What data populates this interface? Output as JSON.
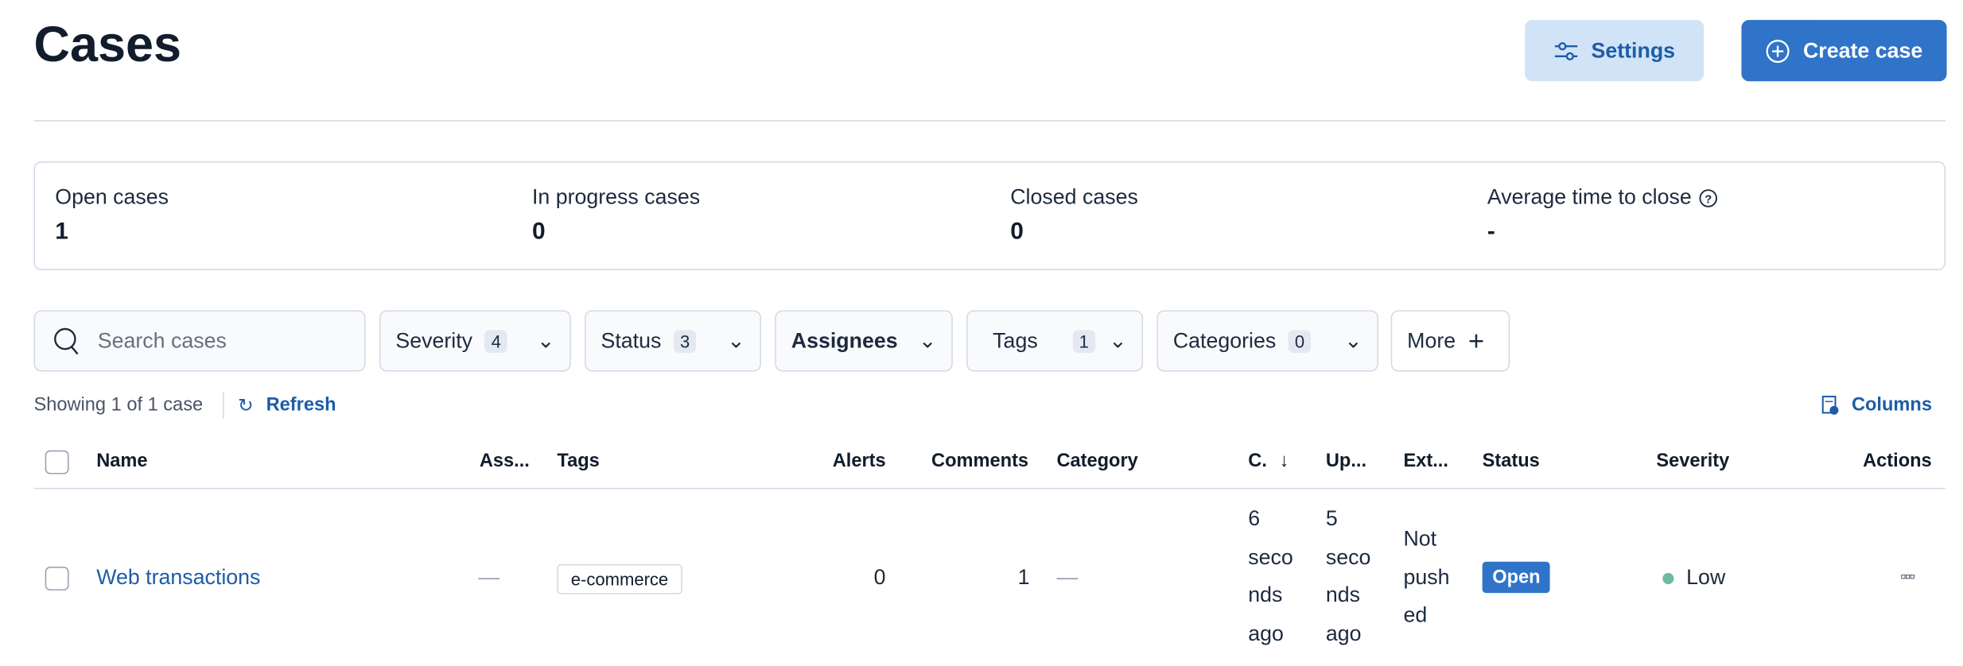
{
  "header": {
    "title": "Cases",
    "settings_label": "Settings",
    "create_label": "Create case"
  },
  "stats": [
    {
      "label": "Open cases",
      "value": "1"
    },
    {
      "label": "In progress cases",
      "value": "0"
    },
    {
      "label": "Closed cases",
      "value": "0"
    },
    {
      "label": "Average time to close",
      "value": "-"
    }
  ],
  "filters": {
    "search_placeholder": "Search cases",
    "severity": {
      "label": "Severity",
      "count": "4"
    },
    "status": {
      "label": "Status",
      "count": "3"
    },
    "assignees": {
      "label": "Assignees"
    },
    "tags": {
      "label": "Tags",
      "count": "1"
    },
    "categories": {
      "label": "Categories",
      "count": "0"
    },
    "more": {
      "label": "More"
    }
  },
  "toolbar": {
    "showing": "Showing 1 of 1 case",
    "refresh": "Refresh",
    "columns": "Columns"
  },
  "table": {
    "columns": {
      "name": "Name",
      "assignees": "Ass...",
      "tags": "Tags",
      "alerts": "Alerts",
      "comments": "Comments",
      "category": "Category",
      "created": "C.",
      "updated": "Up...",
      "external": "Ext...",
      "status": "Status",
      "severity": "Severity",
      "actions": "Actions"
    },
    "rows": [
      {
        "name": "Web transactions",
        "assignees": "—",
        "tag": "e-commerce",
        "alerts": "0",
        "comments": "1",
        "category": "—",
        "created": [
          "6",
          "seco",
          "nds",
          "ago"
        ],
        "updated": [
          "5",
          "seco",
          "nds",
          "ago"
        ],
        "external": [
          "Not",
          "push",
          "ed"
        ],
        "status": "Open",
        "severity": "Low",
        "severity_color": "#6dbb9f",
        "status_color": "#2f74c8"
      }
    ]
  }
}
